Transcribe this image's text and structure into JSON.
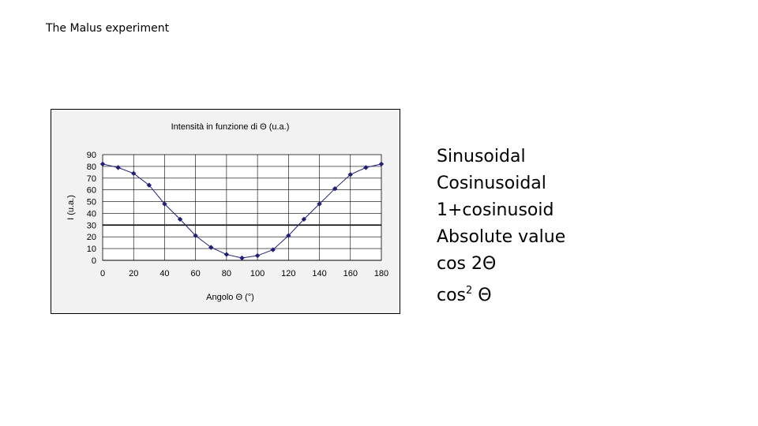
{
  "slide": {
    "title": "The Malus experiment"
  },
  "options": [
    {
      "id": "sinusoidal",
      "text": "Sinusoidal"
    },
    {
      "id": "cosinusoidal",
      "text": "Cosinusoidal"
    },
    {
      "id": "one-plus-cosinusoid",
      "text": "1+cosinusoid"
    },
    {
      "id": "absolute-value",
      "text": "Absolute value"
    },
    {
      "id": "cos-2theta",
      "text": "cos 2Θ"
    },
    {
      "id": "cos-squared-theta",
      "base": "cos",
      "sup": "2",
      "tail": " Θ"
    }
  ],
  "chart_data": {
    "type": "line",
    "title": "Intensità in funzione di Θ (u.a.)",
    "xlabel": "Angolo Θ (°)",
    "ylabel": "I (u.a.)",
    "xlim": [
      0,
      180
    ],
    "ylim": [
      0,
      90
    ],
    "xticks": [
      0,
      20,
      40,
      60,
      80,
      100,
      120,
      140,
      160,
      180
    ],
    "yticks": [
      0,
      10,
      20,
      30,
      40,
      50,
      60,
      70,
      80,
      90
    ],
    "grid": true,
    "reference_line_y": 30,
    "colors": {
      "series": "#1f1f7a",
      "reference": "#000000",
      "grid": "#000000",
      "plot_bg": "#ffffff",
      "frame_bg": "#f2f2f2"
    },
    "series": [
      {
        "x": [
          0,
          10,
          20,
          30,
          40,
          50,
          60,
          70,
          80,
          90,
          100,
          110,
          120,
          130,
          140,
          150,
          160,
          170,
          180
        ],
        "values": [
          82,
          79,
          74,
          64,
          48,
          35,
          21,
          11,
          5,
          2,
          4,
          9,
          21,
          35,
          48,
          61,
          73,
          79,
          82
        ]
      }
    ]
  }
}
